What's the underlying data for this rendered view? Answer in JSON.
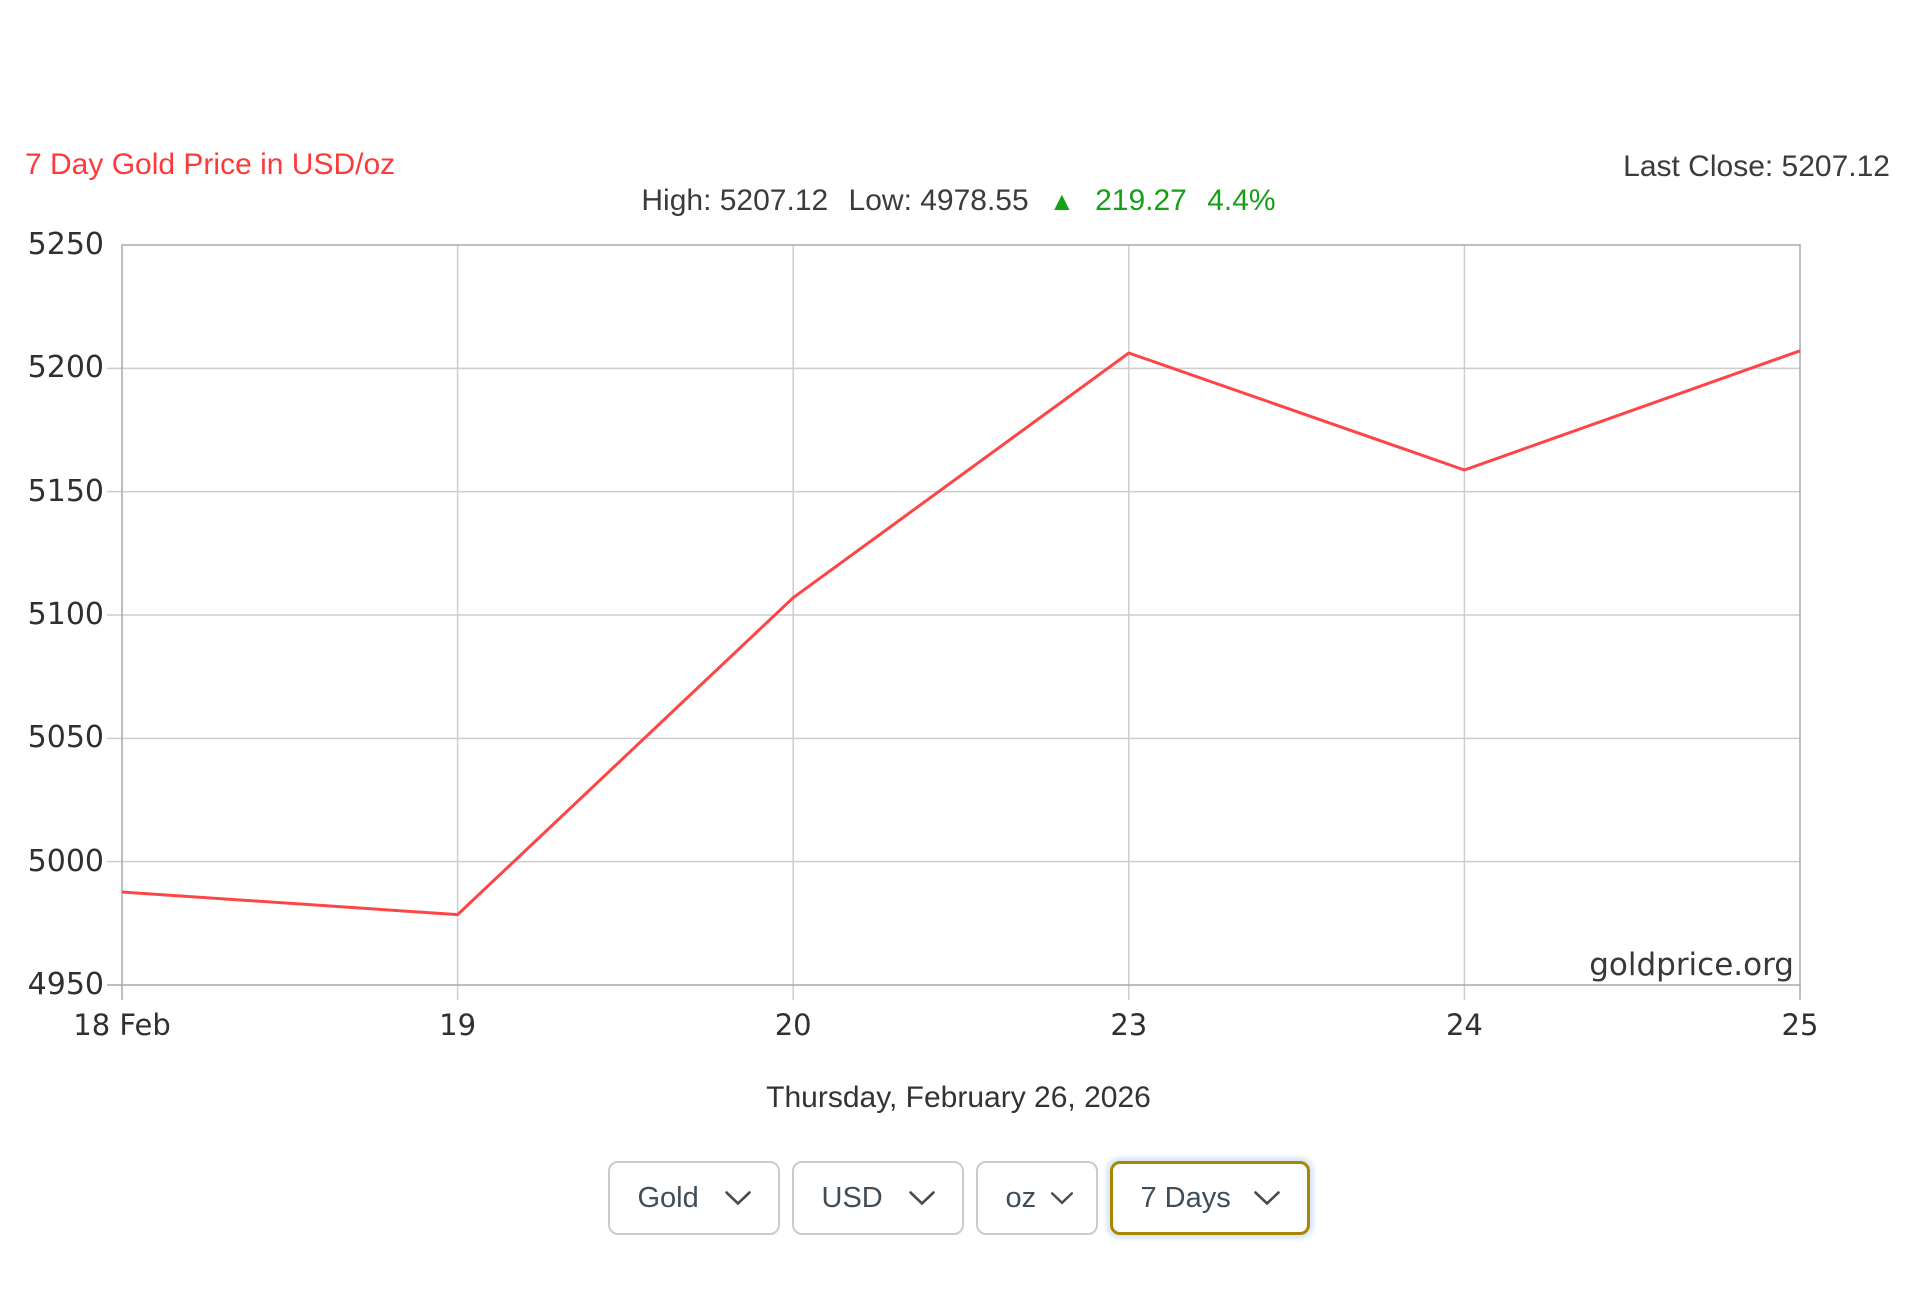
{
  "header": {
    "title": "7 Day Gold Price in USD/oz",
    "last_close": "Last Close: 5207.12",
    "high": "High: 5207.12",
    "low": "Low: 4978.55",
    "change_arrow": "▲",
    "change_value": "219.27",
    "change_percent": "4.4%"
  },
  "chart_data": {
    "type": "line",
    "title": "7 Day Gold Price in USD/oz",
    "x": [
      "18 Feb",
      "19",
      "20",
      "23",
      "24",
      "25"
    ],
    "values": [
      4987.7,
      4978.55,
      5107.0,
      5206.2,
      5158.8,
      5207.12
    ],
    "xlabel": "",
    "ylabel": "",
    "ylim": [
      4950,
      5250
    ],
    "yticks": [
      4950,
      5000,
      5050,
      5100,
      5150,
      5200,
      5250
    ],
    "grid": true,
    "legend": "none",
    "line_color": "#fd4545",
    "watermark": "goldprice.org"
  },
  "footer": {
    "date": "Thursday, February 26, 2026",
    "selectors": [
      {
        "name": "metal",
        "value": "Gold"
      },
      {
        "name": "currency",
        "value": "USD"
      },
      {
        "name": "unit",
        "value": "oz"
      },
      {
        "name": "range",
        "value": "7 Days",
        "focused": true
      }
    ]
  },
  "colors": {
    "title_red": "#fc3a3a",
    "line_red": "#fd4545",
    "change_green": "#16a016",
    "grid_gray": "#cdcdcd",
    "axis_gray": "#a8a8a8",
    "text_dark": "#3b3b3b",
    "focus_gold": "#a98600"
  }
}
